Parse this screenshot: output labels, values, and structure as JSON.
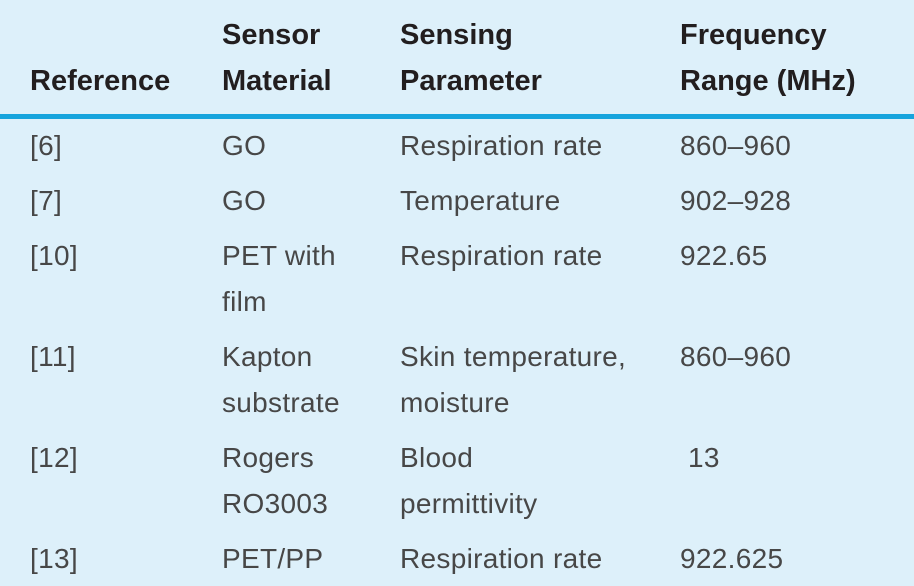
{
  "colors": {
    "background": "#DDF0FA",
    "rule": "#16A4DD",
    "header_text": "#221E1F",
    "body_text": "#474747"
  },
  "table": {
    "headers": [
      {
        "label": "Reference"
      },
      {
        "label": "Sensor\nMaterial"
      },
      {
        "label": "Sensing\nParameter"
      },
      {
        "label": "Frequency\nRange (MHz)"
      }
    ],
    "rows": [
      {
        "reference": "[6]",
        "material": "GO",
        "parameter": "Respiration rate",
        "frequency": "860–960"
      },
      {
        "reference": "[7]",
        "material": "GO",
        "parameter": "Temperature",
        "frequency": "902–928"
      },
      {
        "reference": "[10]",
        "material": "PET with\nfilm",
        "parameter": "Respiration rate",
        "frequency": "922.65"
      },
      {
        "reference": "[11]",
        "material": "Kapton\nsubstrate",
        "parameter": "Skin temperature,\nmoisture",
        "frequency": "860–960"
      },
      {
        "reference": "[12]",
        "material": "Rogers\nRO3003",
        "parameter": "Blood\npermittivity",
        "frequency": "13"
      },
      {
        "reference": "[13]",
        "material": "PET/PP",
        "parameter": "Respiration rate",
        "frequency": "922.625"
      }
    ]
  }
}
